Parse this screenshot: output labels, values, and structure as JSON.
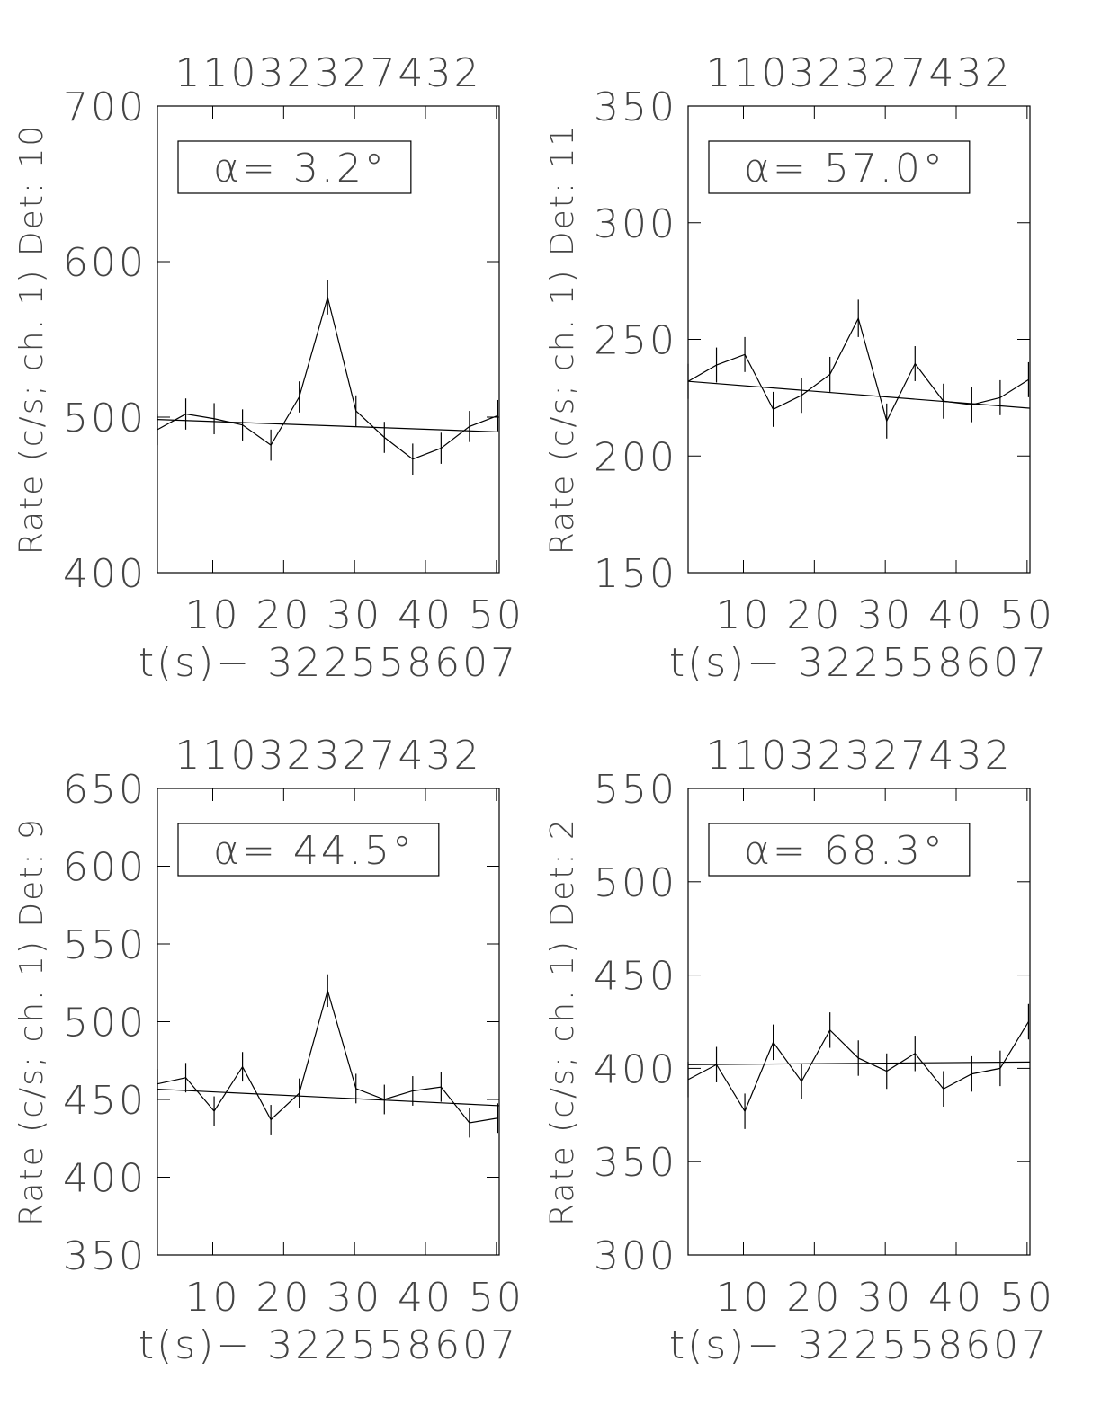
{
  "chart_data": [
    {
      "type": "line",
      "title": "11032327432",
      "xlabel": "t(s)− 322558607",
      "ylabel": "Rate (c/s; ch. 1) Det: 10",
      "annotation": "α= 3.2°",
      "xlim": [
        2.2,
        50.4
      ],
      "xticks": [
        10,
        20,
        30,
        40,
        50
      ],
      "ylim": [
        400,
        700
      ],
      "yticks": [
        400,
        500,
        600,
        700
      ],
      "color": "#000000",
      "x": [
        2.2,
        6.2,
        10.2,
        14.2,
        18.2,
        22.2,
        26.2,
        30.2,
        34.2,
        38.2,
        42.2,
        46.2,
        50.2
      ],
      "series": [
        {
          "values": [
            492,
            502,
            499,
            495,
            482,
            513,
            577,
            504,
            487,
            473,
            480,
            494,
            501
          ],
          "errors": [
            10,
            10,
            10,
            10,
            10,
            10,
            11,
            10,
            10,
            10,
            10,
            10,
            10
          ]
        }
      ],
      "fit": {
        "x": [
          2.2,
          50.4
        ],
        "values": [
          498.5,
          490.5
        ]
      }
    },
    {
      "type": "line",
      "title": "11032327432",
      "xlabel": "t(s)− 322558607",
      "ylabel": "Rate (c/s; ch. 1) Det: 11",
      "annotation": "α= 57.0°",
      "xlim": [
        2.2,
        50.4
      ],
      "xticks": [
        10,
        20,
        30,
        40,
        50
      ],
      "ylim": [
        150,
        350
      ],
      "yticks": [
        150,
        200,
        250,
        300,
        350
      ],
      "color": "#000000",
      "x": [
        2.2,
        6.2,
        10.2,
        14.2,
        18.2,
        22.2,
        26.2,
        30.2,
        34.2,
        38.2,
        42.2,
        46.2,
        50.2
      ],
      "series": [
        {
          "values": [
            232,
            239,
            243.5,
            220,
            226,
            235,
            259,
            215,
            239.6,
            223.5,
            222,
            225,
            232.7
          ],
          "errors": [
            7.5,
            7.5,
            7.5,
            7.5,
            7.5,
            7.5,
            8,
            7.5,
            7.5,
            7.5,
            7.5,
            7.5,
            7.5
          ]
        }
      ],
      "fit": {
        "x": [
          2.2,
          50.4
        ],
        "values": [
          232,
          220.5
        ]
      }
    },
    {
      "type": "line",
      "title": "11032327432",
      "xlabel": "t(s)− 322558607",
      "ylabel": "Rate (c/s; ch. 1) Det: 9",
      "annotation": "α= 44.5°",
      "xlim": [
        2.2,
        50.4
      ],
      "xticks": [
        10,
        20,
        30,
        40,
        50
      ],
      "ylim": [
        350,
        650
      ],
      "yticks": [
        350,
        400,
        450,
        500,
        550,
        600,
        650
      ],
      "color": "#000000",
      "x": [
        2.2,
        6.2,
        10.2,
        14.2,
        18.2,
        22.2,
        26.2,
        30.2,
        34.2,
        38.2,
        42.2,
        46.2,
        50.2
      ],
      "series": [
        {
          "values": [
            460,
            464,
            442.5,
            471,
            437,
            454,
            520,
            457,
            450,
            455.5,
            458,
            435,
            438
          ],
          "errors": [
            9.5,
            9.5,
            9.5,
            9.5,
            9.5,
            9.5,
            10.5,
            9.5,
            9.5,
            9.5,
            9.5,
            9.5,
            9.5
          ]
        }
      ],
      "fit": {
        "x": [
          2.2,
          50.4
        ],
        "values": [
          456.6,
          446
        ]
      }
    },
    {
      "type": "line",
      "title": "11032327432",
      "xlabel": "t(s)− 322558607",
      "ylabel": "Rate (c/s; ch. 1) Det: 2",
      "annotation": "α= 68.3°",
      "xlim": [
        2.2,
        50.4
      ],
      "xticks": [
        10,
        20,
        30,
        40,
        50
      ],
      "ylim": [
        300,
        550
      ],
      "yticks": [
        300,
        350,
        400,
        450,
        500,
        550
      ],
      "color": "#000000",
      "x": [
        2.2,
        6.2,
        10.2,
        14.2,
        18.2,
        22.2,
        26.2,
        30.2,
        34.2,
        38.2,
        42.2,
        46.2,
        50.2
      ],
      "series": [
        {
          "values": [
            394,
            402,
            377,
            414,
            393,
            420.5,
            405.5,
            398.5,
            408,
            389,
            397,
            400,
            425
          ],
          "errors": [
            9.5,
            9.5,
            9.5,
            9.5,
            9.5,
            9.5,
            9.5,
            9.5,
            9.5,
            9.5,
            9.5,
            9.5,
            9.5
          ]
        }
      ],
      "fit": {
        "x": [
          2.2,
          50.4
        ],
        "values": [
          402,
          403.4
        ]
      }
    }
  ]
}
